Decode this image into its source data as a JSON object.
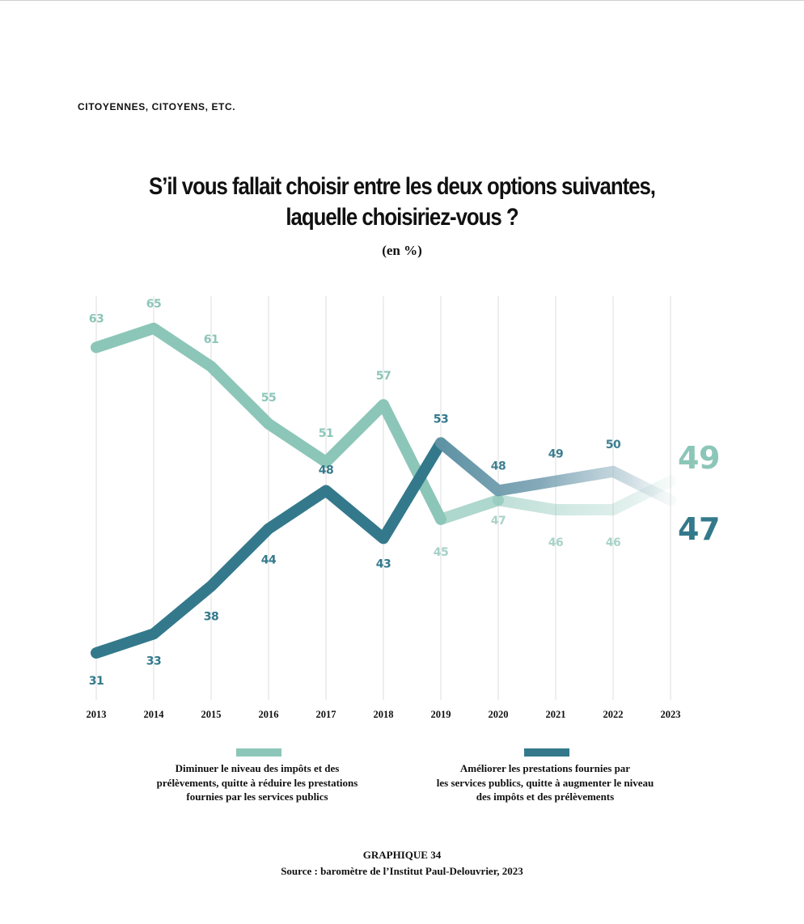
{
  "section_header": "CITOYENNES, CITOYENS, ETC.",
  "title_line1": "S’il vous fallait choisir entre les deux options suivantes,",
  "title_line2": "laquelle choisiriez-vous ?",
  "subtitle": "(en %)",
  "colors": {
    "light": "#8cc6b8",
    "dark": "#33798b",
    "grid": "#dcdcdc"
  },
  "chart_data": {
    "type": "line",
    "x": [
      "2013",
      "2014",
      "2015",
      "2016",
      "2017",
      "2018",
      "2019",
      "2020",
      "2021",
      "2022",
      "2023"
    ],
    "ylim": [
      28,
      68
    ],
    "grid": "vertical",
    "series": [
      {
        "name": "Diminuer le niveau des impôts et des prélèvements, quitte à réduire les prestations fournies par les services publics",
        "values": [
          63,
          65,
          61,
          55,
          51,
          57,
          45,
          47,
          46,
          46,
          49
        ],
        "color": "#8cc6b8"
      },
      {
        "name": "Améliorer les prestations fournies par les services publics, quitte à augmenter le niveau des impôts et des prélèvements",
        "values": [
          31,
          33,
          38,
          44,
          48,
          43,
          53,
          48,
          49,
          50,
          47
        ],
        "color": "#33798b"
      }
    ]
  },
  "legend": {
    "light_lines": [
      "Diminuer le niveau des impôts et des",
      "prélèvements, quitte à réduire les prestations",
      "fournies par les services publics"
    ],
    "dark_lines": [
      "Améliorer les prestations fournies par",
      "les services publics, quitte à augmenter le niveau",
      "des impôts et des prélèvements"
    ]
  },
  "figure_label": "GRAPHIQUE 34",
  "source": "Source : baromètre de l’Institut Paul-Delouvrier, 2023"
}
